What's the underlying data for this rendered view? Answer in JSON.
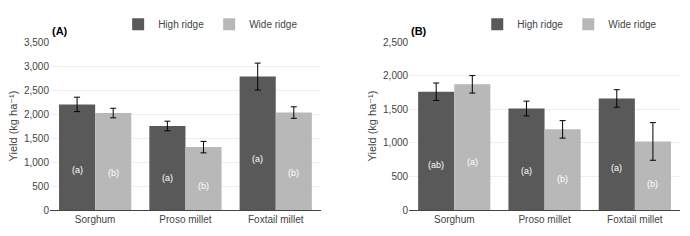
{
  "chart_data": [
    {
      "type": "bar",
      "title": "(A)",
      "ylabel": "Yield (kg ha⁻¹)",
      "categories": [
        "Sorghum",
        "Proso millet",
        "Foxtail millet"
      ],
      "series": [
        {
          "name": "High ridge",
          "color": "#595959",
          "values": [
            2200,
            1750,
            2780
          ],
          "errors": [
            150,
            100,
            280
          ],
          "annotations": [
            "(a)",
            "(a)",
            "(a)"
          ]
        },
        {
          "name": "Wide ridge",
          "color": "#b8b8b8",
          "values": [
            2020,
            1310,
            2030
          ],
          "errors": [
            100,
            120,
            120
          ],
          "annotations": [
            "(b)",
            "(b)",
            "(b)"
          ]
        }
      ],
      "ylim": [
        0,
        3500
      ],
      "yticks": [
        0,
        500,
        {
          "value": 1000,
          "label": "1,000"
        },
        {
          "value": 1500,
          "label": "1,500"
        },
        {
          "value": 2000,
          "label": "2,000"
        },
        {
          "value": 2500,
          "label": "2,500"
        },
        {
          "value": 3000,
          "label": "3,000"
        },
        {
          "value": 3500,
          "label": "3,500"
        }
      ],
      "grid": true,
      "legend": "top"
    },
    {
      "type": "bar",
      "title": "(B)",
      "ylabel": "Yield (kg ha⁻¹)",
      "categories": [
        "Sorghum",
        "Proso millet",
        "Foxtail millet"
      ],
      "series": [
        {
          "name": "High ridge",
          "color": "#595959",
          "values": [
            1760,
            1510,
            1660
          ],
          "errors": [
            130,
            110,
            130
          ],
          "annotations": [
            "(ab)",
            "(a)",
            "(a)"
          ]
        },
        {
          "name": "Wide ridge",
          "color": "#b8b8b8",
          "values": [
            1870,
            1200,
            1020
          ],
          "errors": [
            130,
            130,
            280
          ],
          "annotations": [
            "(a)",
            "(b)",
            "(b)"
          ]
        }
      ],
      "ylim": [
        0,
        2500
      ],
      "yticks": [
        0,
        500,
        {
          "value": 1000,
          "label": "1,000"
        },
        {
          "value": 1500,
          "label": "1,500"
        },
        {
          "value": 2000,
          "label": "2,000"
        },
        {
          "value": 2500,
          "label": "2,500"
        }
      ],
      "grid": true,
      "legend": "top"
    }
  ]
}
